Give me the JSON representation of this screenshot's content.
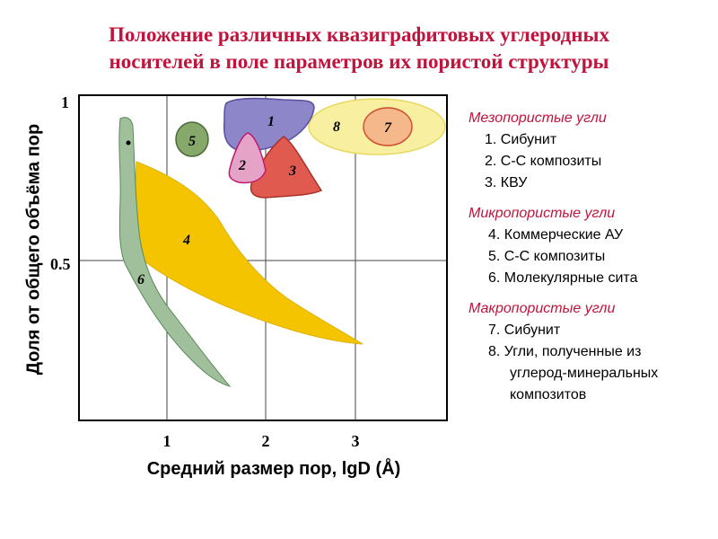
{
  "title": {
    "line1": "Положение различных квазиграфитовых углеродных",
    "line2": "носителей в поле параметров их пористой структуры"
  },
  "axes": {
    "xlabel": "Средний размер пор, lgD (Å)",
    "ylabel": "Доля от общего объёма пор",
    "x_ticks": [
      "1",
      "2",
      "3"
    ],
    "y_ticks": [
      "1",
      "0.5"
    ]
  },
  "regions": {
    "r1": "1",
    "r2": "2",
    "r3": "3",
    "r4": "4",
    "r5": "5",
    "r6": "6",
    "r7": "7",
    "r8": "8"
  },
  "colors": {
    "title": "#c0143c",
    "region_1": "#8d86c9",
    "region_2": "#e6a3c8",
    "region_3": "#e05a4f",
    "region_4": "#f5c400",
    "region_5": "#86a86a",
    "region_6": "#9fc09a",
    "region_7": "#f5b88a",
    "region_8": "#f8f0a0"
  },
  "legend": {
    "meso": {
      "title": "Мезопористые угли",
      "items": [
        "1. Сибунит",
        "2. С-С композиты",
        "3. КВУ"
      ]
    },
    "micro": {
      "title": "Микропористые угли",
      "items": [
        "4. Коммерческие  АУ",
        "5. С-С композиты",
        "6. Молекулярные сита"
      ]
    },
    "macro": {
      "title": "Макропористые угли",
      "item7": "7. Сибунит",
      "item8_line1": "8. Угли, полученные из",
      "item8_line2": "углерод-минеральных",
      "item8_line3": "композитов"
    }
  }
}
